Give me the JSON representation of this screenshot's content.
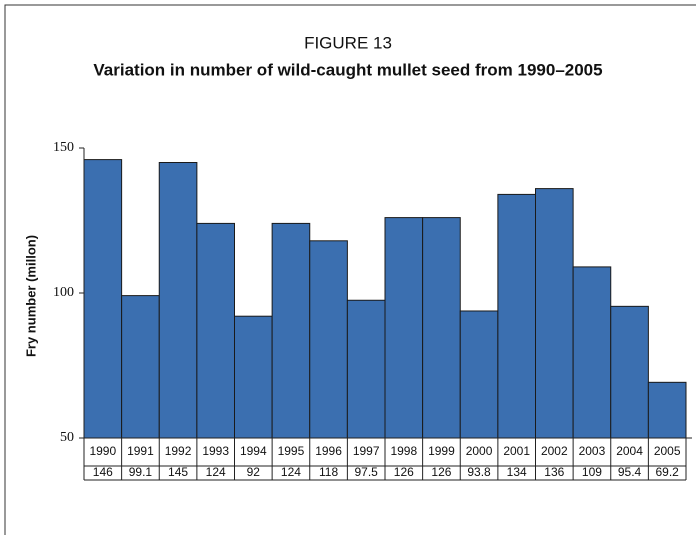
{
  "chart_data": {
    "type": "bar",
    "title": "FIGURE 13",
    "subtitle": "Variation in number of wild-caught mullet seed from 1990–2005",
    "y_label": "Fry number (millon)",
    "categories": [
      "1990",
      "1991",
      "1992",
      "1993",
      "1994",
      "1995",
      "1996",
      "1997",
      "1998",
      "1999",
      "2000",
      "2001",
      "2002",
      "2003",
      "2004",
      "2005"
    ],
    "values": [
      146,
      99.1,
      145,
      124,
      92,
      124,
      118,
      97.5,
      126,
      126,
      93.8,
      134,
      136,
      109,
      95.4,
      69.2
    ],
    "color": "#3b6fb0",
    "ylim": [
      50,
      150
    ],
    "yticks": [
      50,
      100,
      150
    ]
  }
}
